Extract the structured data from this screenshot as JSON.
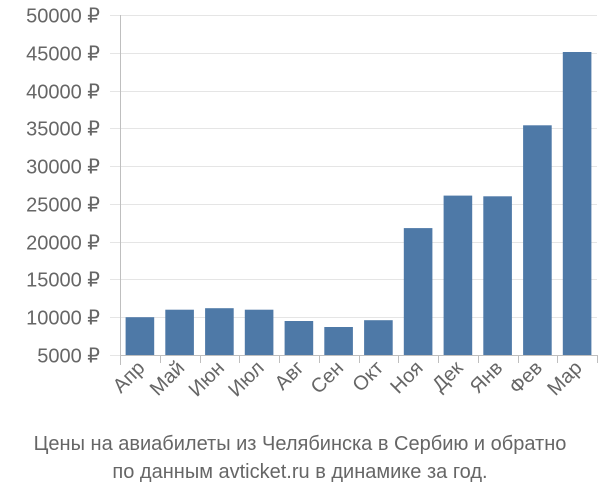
{
  "chart_data": {
    "type": "bar",
    "categories": [
      "Апр",
      "Май",
      "Июн",
      "Июл",
      "Авг",
      "Сен",
      "Окт",
      "Ноя",
      "Дек",
      "Янв",
      "Фев",
      "Мар"
    ],
    "values": [
      10000,
      11000,
      11200,
      11000,
      9500,
      8700,
      9600,
      21800,
      26100,
      26000,
      35400,
      45100
    ],
    "ylim": [
      5000,
      50000
    ],
    "yticks": [
      5000,
      10000,
      15000,
      20000,
      25000,
      30000,
      35000,
      40000,
      45000,
      50000
    ],
    "ytick_labels": [
      "5000 ₽",
      "10000 ₽",
      "15000 ₽",
      "20000 ₽",
      "25000 ₽",
      "30000 ₽",
      "35000 ₽",
      "40000 ₽",
      "45000 ₽",
      "50000 ₽"
    ],
    "grid": true,
    "bar_color": "#4e79a7",
    "title": "",
    "xlabel": "",
    "ylabel": ""
  },
  "caption": {
    "line1": "Цены на авиабилеты из Челябинска в Сербию и обратно",
    "line2": "по данным avticket.ru в динамике за год."
  }
}
